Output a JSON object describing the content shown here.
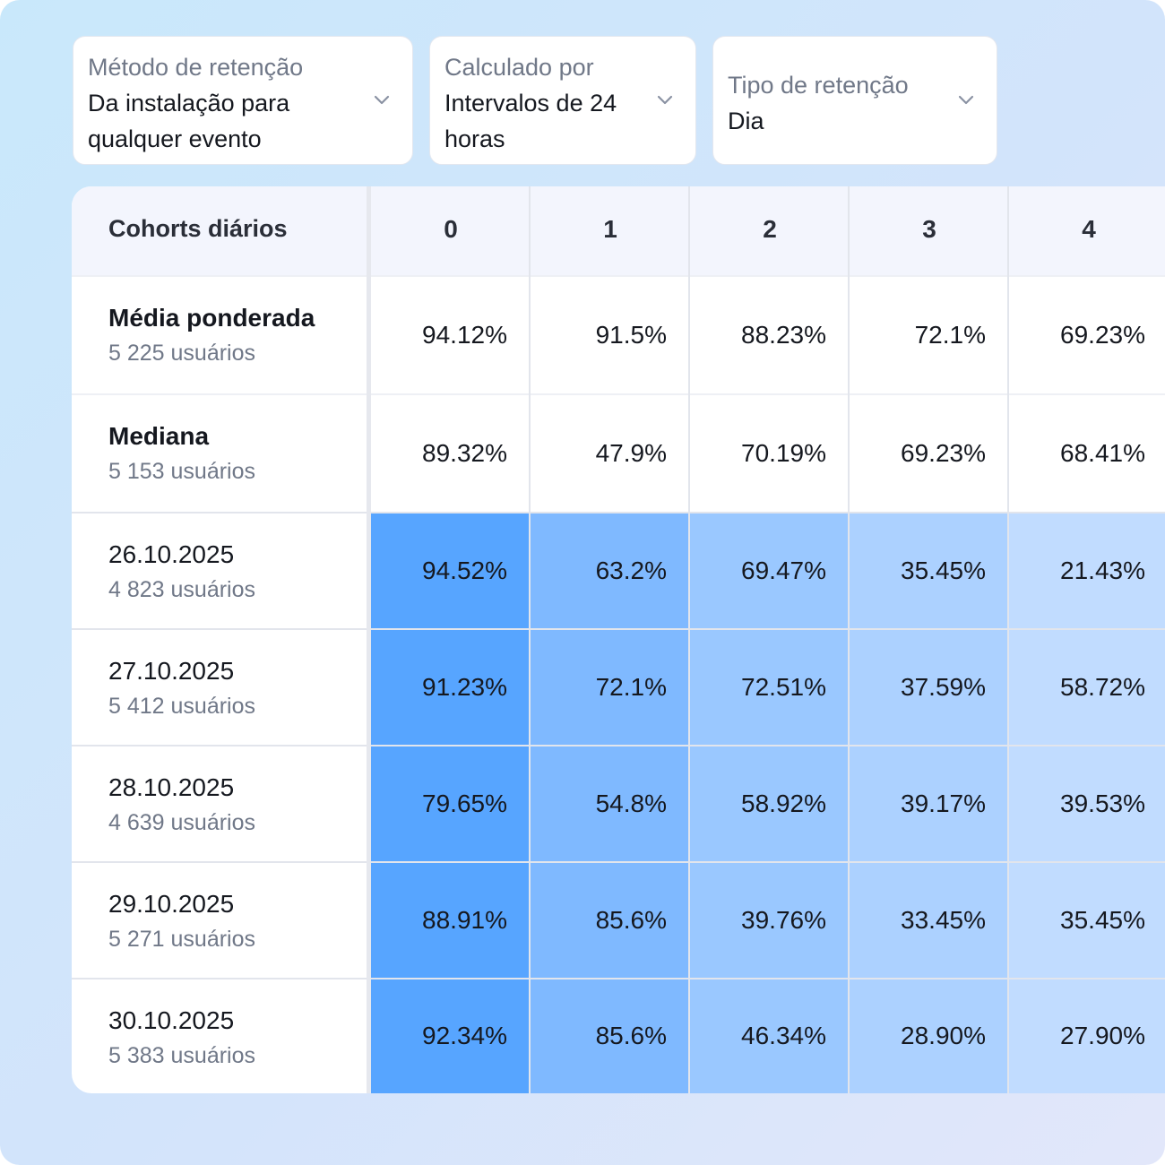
{
  "filters": [
    {
      "label": "Método de retenção",
      "value": "Da instalação para qualquer evento",
      "icon": "chevron-down-icon"
    },
    {
      "label": "Calculado por",
      "value": "Intervalos de 24 horas",
      "icon": "chevron-down-icon"
    },
    {
      "label": "Tipo de retenção",
      "value": "Dia",
      "icon": "chevron-down-icon"
    }
  ],
  "table": {
    "title": "Cohorts diários",
    "days": [
      "0",
      "1",
      "2",
      "3",
      "4"
    ],
    "summary_rows": [
      {
        "name": "Média ponderada",
        "users": "5 225 usuários",
        "values": [
          "94.12%",
          "91.5%",
          "88.23%",
          "72.1%",
          "69.23%"
        ]
      },
      {
        "name": "Mediana",
        "users": "5 153 usuários",
        "values": [
          "89.32%",
          "47.9%",
          "70.19%",
          "69.23%",
          "68.41%"
        ]
      }
    ],
    "cohort_rows": [
      {
        "name": "26.10.2025",
        "users": "4 823 usuários",
        "values": [
          "94.52%",
          "63.2%",
          "69.47%",
          "35.45%",
          "21.43%"
        ]
      },
      {
        "name": "27.10.2025",
        "users": "5 412 usuários",
        "values": [
          "91.23%",
          "72.1%",
          "72.51%",
          "37.59%",
          "58.72%"
        ]
      },
      {
        "name": "28.10.2025",
        "users": "4 639 usuários",
        "values": [
          "79.65%",
          "54.8%",
          "58.92%",
          "39.17%",
          "39.53%"
        ]
      },
      {
        "name": "29.10.2025",
        "users": "5 271 usuários",
        "values": [
          "88.91%",
          "85.6%",
          "39.76%",
          "33.45%",
          "35.45%"
        ]
      },
      {
        "name": "30.10.2025",
        "users": "5 383 usuários",
        "values": [
          "92.34%",
          "85.6%",
          "46.34%",
          "28.90%",
          "27.90%"
        ]
      }
    ],
    "column_colors": [
      "#57a5ff",
      "#7fb9ff",
      "#9ac8ff",
      "#acd1ff",
      "#c1dcff"
    ]
  }
}
